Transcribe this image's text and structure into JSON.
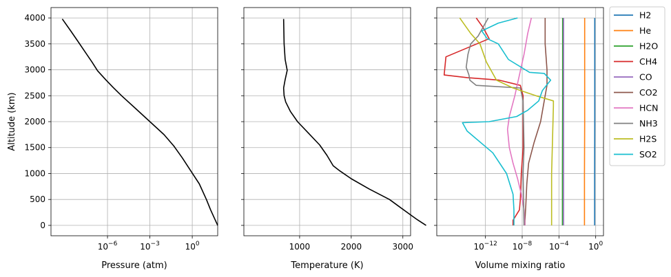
{
  "chart_data": [
    {
      "type": "line",
      "xlabel": "Pressure (atm)",
      "ylabel": "Altitude (km)",
      "xscale": "log",
      "xlim": [
        -10,
        1.8
      ],
      "ylim": [
        -200,
        4200
      ],
      "xticks": [
        -6,
        -3,
        0
      ],
      "xtick_labels": [
        "10",
        "10",
        "10"
      ],
      "xtick_sups": [
        "−6",
        "−3",
        "0"
      ],
      "yticks": [
        0,
        500,
        1000,
        1500,
        2000,
        2500,
        3000,
        3500,
        4000
      ],
      "ytick_labels": [
        "0",
        "500",
        "1000",
        "1500",
        "2000",
        "2500",
        "3000",
        "3500",
        "4000"
      ],
      "grid": true,
      "series": [
        {
          "color": "#000000",
          "x": [
            -9.2,
            -8.6,
            -8.1,
            -7.6,
            -7.1,
            -6.7,
            -6.1,
            -5.6,
            -5.0,
            -4.0,
            -3.0,
            -2.0,
            -1.3,
            -0.7,
            -0.1,
            0.5,
            1.0,
            1.3,
            1.8
          ],
          "y": [
            3980,
            3750,
            3550,
            3350,
            3150,
            2980,
            2800,
            2660,
            2500,
            2250,
            2000,
            1750,
            1530,
            1300,
            1050,
            800,
            500,
            300,
            0
          ]
        }
      ]
    },
    {
      "type": "line",
      "xlabel": "Temperature (K)",
      "xlim": [
        -80,
        3150
      ],
      "ylim": [
        -200,
        4200
      ],
      "xticks": [
        1000,
        2000,
        3000
      ],
      "xtick_labels": [
        "1000",
        "2000",
        "3000"
      ],
      "yticks": [
        0,
        500,
        1000,
        1500,
        2000,
        2500,
        3000,
        3500,
        4000
      ],
      "grid": true,
      "series": [
        {
          "color": "#000000",
          "x": [
            690,
            700,
            720,
            760,
            720,
            690,
            700,
            730,
            820,
            960,
            1150,
            1390,
            1530,
            1650,
            1780,
            2000,
            2350,
            2740,
            2960,
            3140,
            3280,
            3450
          ],
          "y": [
            3980,
            3500,
            3200,
            2990,
            2810,
            2650,
            2500,
            2380,
            2200,
            2000,
            1800,
            1550,
            1350,
            1150,
            1050,
            900,
            700,
            500,
            340,
            210,
            110,
            0
          ]
        }
      ]
    },
    {
      "type": "line",
      "xlabel": "Volume mixing ratio",
      "xscale": "log",
      "xlim": [
        -17.3,
        0.85
      ],
      "ylim": [
        -200,
        4200
      ],
      "xticks": [
        -12,
        -8,
        -4,
        0
      ],
      "xtick_labels": [
        "10",
        "10",
        "10",
        "10"
      ],
      "xtick_sups": [
        "−12",
        "−8",
        "−4",
        "0"
      ],
      "yticks": [
        0,
        500,
        1000,
        1500,
        2000,
        2500,
        3000,
        3500,
        4000
      ],
      "grid": true,
      "legend": "outside-right",
      "series": [
        {
          "name": "H2",
          "color": "#1f77b4",
          "x": [
            -0.1,
            -0.1,
            -0.12,
            -0.12
          ],
          "y": [
            4000,
            2000,
            1000,
            0
          ]
        },
        {
          "name": "He",
          "color": "#ff7f0e",
          "x": [
            -1.2,
            -1.2,
            -1.22,
            -1.22
          ],
          "y": [
            4000,
            2000,
            1000,
            0
          ]
        },
        {
          "name": "H2O",
          "color": "#2ca02c",
          "x": [
            -3.6,
            -3.6,
            -3.62,
            -3.62
          ],
          "y": [
            4000,
            2500,
            1000,
            0
          ]
        },
        {
          "name": "CH4",
          "color": "#d62728",
          "x": [
            -13.0,
            -12.2,
            -11.6,
            -16.3,
            -16.5,
            -14.0,
            -10.5,
            -8.2,
            -7.9,
            -7.9,
            -7.9,
            -8.1,
            -8.2,
            -8.3,
            -9.0,
            -9.0
          ],
          "y": [
            4000,
            3800,
            3600,
            3250,
            2900,
            2850,
            2800,
            2700,
            2500,
            2000,
            1500,
            1000,
            500,
            300,
            100,
            0
          ]
        },
        {
          "name": "CO",
          "color": "#9467bd",
          "x": [
            -3.5,
            -3.5,
            -3.5,
            -3.5
          ],
          "y": [
            4000,
            2500,
            1000,
            0
          ]
        },
        {
          "name": "CO2",
          "color": "#8c564b",
          "x": [
            -5.5,
            -5.5,
            -5.3,
            -5.3,
            -5.5,
            -6.0,
            -6.7,
            -7.3,
            -7.5,
            -7.6,
            -7.7,
            -7.7
          ],
          "y": [
            4000,
            3500,
            3000,
            2700,
            2500,
            2000,
            1600,
            1200,
            800,
            400,
            100,
            0
          ]
        },
        {
          "name": "HCN",
          "color": "#e377c2",
          "x": [
            -7.0,
            -7.4,
            -7.8,
            -8.3,
            -8.8,
            -9.4,
            -9.6,
            -9.4,
            -9.0,
            -8.5,
            -8.1,
            -7.8,
            -7.7
          ],
          "y": [
            4000,
            3700,
            3300,
            2900,
            2500,
            2100,
            1850,
            1500,
            1200,
            900,
            600,
            300,
            0
          ]
        },
        {
          "name": "NH3",
          "color": "#7f7f7f",
          "x": [
            -11.7,
            -12.8,
            -13.6,
            -13.9,
            -14.1,
            -13.8,
            -13.7,
            -13.0,
            -8.2,
            -7.9,
            -7.8,
            -7.9,
            -7.8
          ],
          "y": [
            4000,
            3650,
            3500,
            3300,
            3050,
            2900,
            2800,
            2700,
            2650,
            2400,
            1500,
            1000,
            0
          ]
        },
        {
          "name": "H2S",
          "color": "#bcbd22",
          "x": [
            -14.8,
            -13.6,
            -12.6,
            -11.9,
            -10.8,
            -9.0,
            -6.5,
            -4.6,
            -4.6,
            -4.8,
            -4.8
          ],
          "y": [
            4000,
            3700,
            3500,
            3150,
            2800,
            2650,
            2500,
            2400,
            2300,
            1000,
            0
          ]
        },
        {
          "name": "SO2",
          "color": "#17becf",
          "x": [
            -8.5,
            -10.6,
            -12.4,
            -11.8,
            -10.6,
            -9.5,
            -7.2,
            -5.6,
            -4.9,
            -5.8,
            -6.2,
            -7.4,
            -8.6,
            -11.6,
            -14.5,
            -14.0,
            -11.2,
            -9.7,
            -9.0,
            -8.9,
            -8.9
          ],
          "y": [
            4000,
            3900,
            3750,
            3600,
            3500,
            3200,
            2950,
            2930,
            2800,
            2600,
            2400,
            2220,
            2100,
            2000,
            1980,
            1820,
            1400,
            1000,
            600,
            300,
            0
          ]
        }
      ]
    }
  ]
}
